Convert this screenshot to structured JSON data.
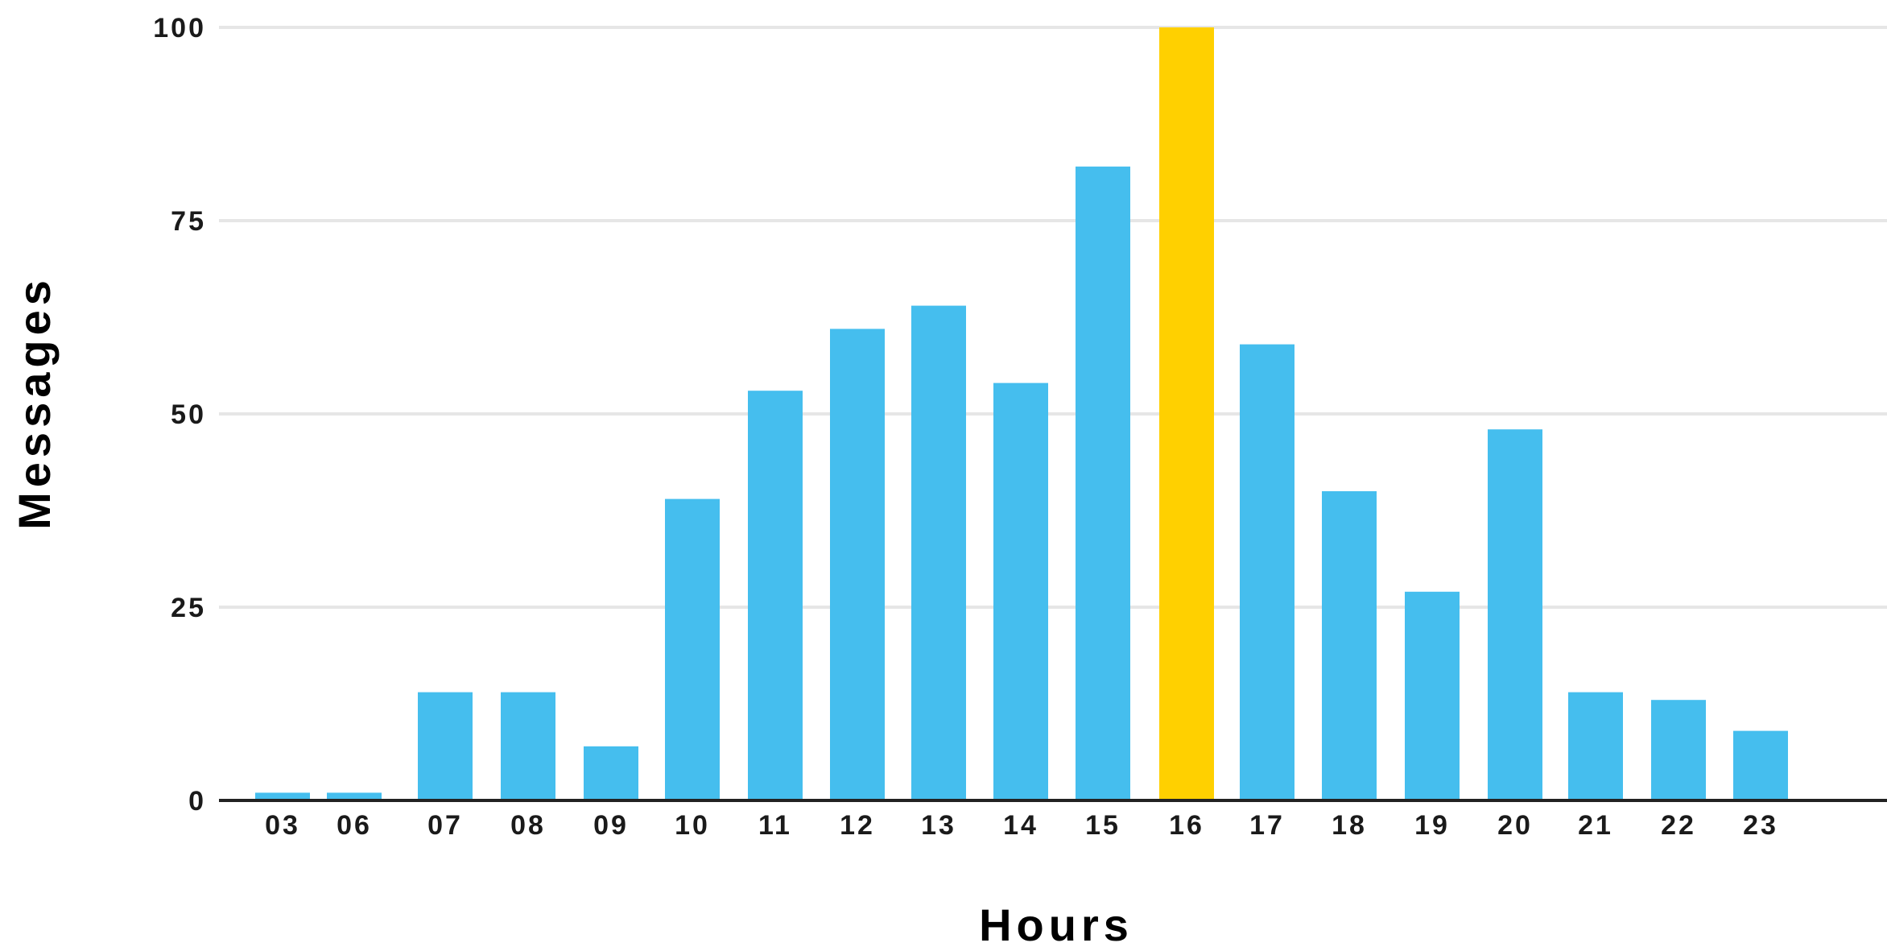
{
  "chart_data": {
    "type": "bar",
    "title": "",
    "xlabel": "Hours",
    "ylabel": "Messages",
    "categories": [
      "03",
      "06",
      "07",
      "08",
      "09",
      "10",
      "11",
      "12",
      "13",
      "14",
      "15",
      "16",
      "17",
      "18",
      "19",
      "20",
      "21",
      "22",
      "23"
    ],
    "values": [
      1,
      1,
      14,
      14,
      7,
      39,
      53,
      61,
      64,
      54,
      82,
      100,
      59,
      40,
      27,
      48,
      14,
      13,
      9
    ],
    "highlight_category": "16",
    "ylim": [
      0,
      100
    ],
    "yticks": [
      "0",
      "25",
      "50",
      "75",
      "100"
    ],
    "grid": true,
    "legend": "none",
    "colors": {
      "bar": "#45BEEE",
      "highlight": "#FFD000",
      "grid": "#E6E6E6",
      "axis": "#222222"
    }
  }
}
